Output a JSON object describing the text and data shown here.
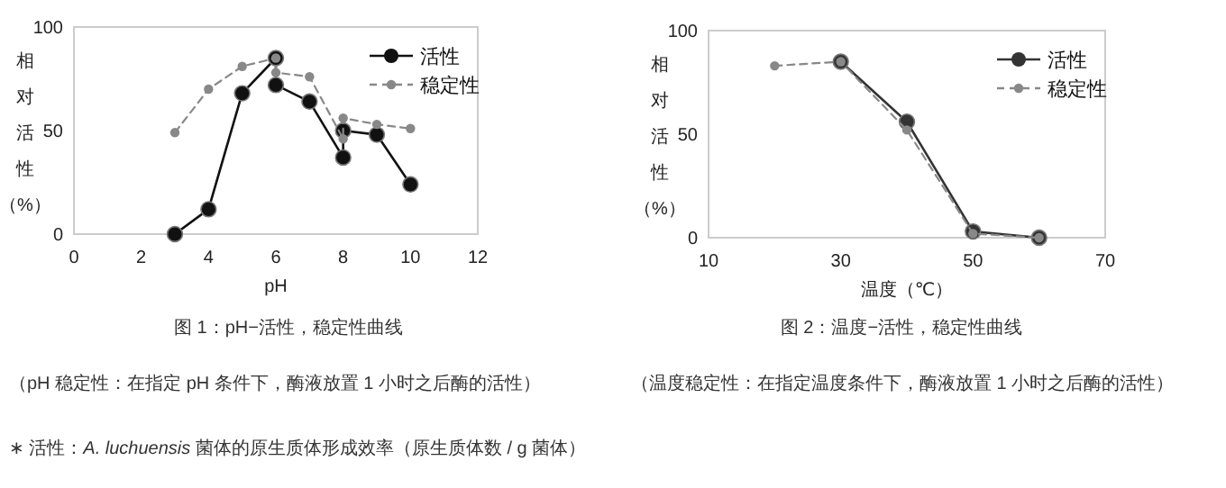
{
  "chart_data": [
    {
      "type": "line",
      "title": "图 1：pH−活性，稳定性曲线",
      "xlabel": "pH",
      "ylabel": "相对活性（%）",
      "xlim": [
        0,
        12
      ],
      "ylim": [
        0,
        100
      ],
      "xticks": [
        0,
        2,
        4,
        6,
        8,
        10,
        12
      ],
      "yticks": [
        0,
        50,
        100
      ],
      "marker": "circle",
      "legend": "top right",
      "annotations": [
        "（pH 稳定性：在指定 pH 条件下，酶液放置 1 小时之后酶的活性）",
        "∗ 活性：*A. luchuensis* 菌体的原生质体形成效率（原生质体数 / g 菌体）"
      ],
      "series": [
        {
          "name": "活性",
          "color": "#111111",
          "line_style": "solid",
          "x": [
            3,
            4,
            5,
            6,
            6,
            7,
            8,
            8,
            9,
            10
          ],
          "values": [
            0,
            12,
            68,
            85,
            72,
            64,
            37,
            50,
            48,
            24
          ]
        },
        {
          "name": "稳定性",
          "color": "#888888",
          "line_style": "dashed",
          "x": [
            3,
            4,
            5,
            6,
            6,
            7,
            8,
            8,
            9,
            10
          ],
          "values": [
            49,
            70,
            81,
            85,
            78,
            76,
            46,
            56,
            53,
            51
          ]
        }
      ]
    },
    {
      "type": "line",
      "title": "图 2：温度−活性，稳定性曲线",
      "xlabel": "温度（℃）",
      "ylabel": "相对活性（%）",
      "xlim": [
        10,
        70
      ],
      "ylim": [
        0,
        100
      ],
      "xticks": [
        10,
        30,
        50,
        70
      ],
      "yticks": [
        0,
        50,
        100
      ],
      "marker": "circle",
      "legend": "top right",
      "annotations": [
        "（温度稳定性：在指定温度条件下，酶液放置 1 小时之后酶的活性）"
      ],
      "series": [
        {
          "name": "活性",
          "color": "#333333",
          "line_style": "solid",
          "x": [
            30,
            40,
            50,
            60
          ],
          "values": [
            85,
            56,
            3,
            0
          ]
        },
        {
          "name": "稳定性",
          "color": "#888888",
          "line_style": "dashed",
          "x": [
            20,
            30,
            40,
            50,
            60
          ],
          "values": [
            83,
            85,
            52,
            2,
            0
          ]
        }
      ]
    }
  ]
}
